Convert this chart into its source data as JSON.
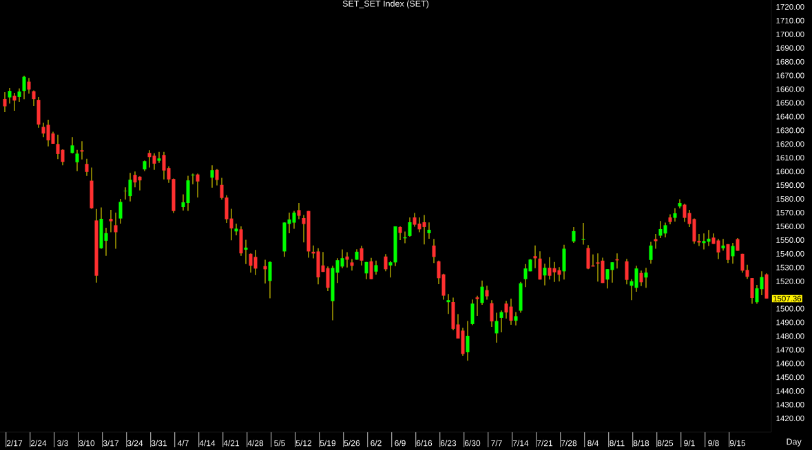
{
  "chart_data": {
    "type": "candlestick",
    "title": "SET_SET Index (SET)",
    "xlabel": "Day",
    "categories": [
      null,
      null,
      "2/17",
      null,
      null,
      null,
      null,
      "2/24",
      null,
      null,
      null,
      null,
      "3/3",
      null,
      null,
      null,
      null,
      "3/10",
      null,
      null,
      null,
      null,
      "3/17",
      null,
      null,
      null,
      null,
      "3/24",
      null,
      null,
      null,
      null,
      "3/31",
      null,
      null,
      null,
      null,
      "4/7",
      null,
      null,
      null,
      null,
      "4/14",
      null,
      null,
      null,
      null,
      "4/21",
      null,
      null,
      null,
      null,
      "4/28",
      null,
      null,
      null,
      null,
      "5/5",
      null,
      null,
      null,
      null,
      "5/12",
      null,
      null,
      null,
      null,
      "5/19",
      null,
      null,
      null,
      null,
      "5/26",
      null,
      null,
      null,
      null,
      "6/2",
      null,
      null,
      null,
      null,
      "6/9",
      null,
      null,
      null,
      null,
      "6/16",
      null,
      null,
      null,
      null,
      "6/23",
      null,
      null,
      null,
      null,
      "6/30",
      null,
      null,
      null,
      null,
      "7/7",
      null,
      null,
      null,
      null,
      "7/14",
      null,
      null,
      null,
      null,
      "7/21",
      null,
      null,
      null,
      null,
      "7/28",
      null,
      null,
      null,
      null,
      "8/4",
      null,
      null,
      null,
      null,
      "8/11",
      null,
      null,
      null,
      null,
      "8/18",
      null,
      null,
      null,
      null,
      "8/25",
      null,
      null,
      null,
      null,
      "9/1",
      null,
      null,
      null,
      null,
      "9/8",
      null,
      null,
      null,
      null,
      "9/15",
      null,
      null,
      null,
      null,
      null,
      null
    ],
    "ohlc": [
      [
        1652.8,
        1657.8,
        1643.3,
        1647.5
      ],
      [
        1654,
        1660.8,
        1649.5,
        1658.7
      ],
      [
        1655.2,
        1657.3,
        1644.2,
        1651.7
      ],
      [
        1654.3,
        1660.5,
        1650.7,
        1658.3
      ],
      [
        1658.7,
        1669.8,
        1652.7,
        1669
      ],
      [
        1665.5,
        1668.2,
        1656.8,
        1659.7
      ],
      [
        1658.5,
        1659,
        1647.7,
        1652.7
      ],
      [
        1652.2,
        1654.3,
        1631.8,
        1634.2
      ],
      [
        1632.5,
        1635.5,
        1625,
        1627.7
      ],
      [
        1634,
        1637.7,
        1618.3,
        1622.7
      ],
      [
        1627.7,
        1629,
        1620.2,
        1620.2
      ],
      [
        1620,
        1626.8,
        1609,
        1612.7
      ],
      [
        1615.8,
        1616.2,
        1604.5,
        1607
      ],
      null,
      [
        1613.5,
        1625,
        1613.2,
        1619
      ],
      [
        1606.7,
        1615.8,
        1600.2,
        1613
      ],
      [
        1615.5,
        1622,
        1608.7,
        1614.5
      ],
      [
        1605.5,
        1609.3,
        1596.7,
        1599.7
      ],
      [
        1593.3,
        1602.8,
        1572.8,
        1573.2
      ],
      [
        1564.3,
        1572.7,
        1519,
        1524
      ],
      [
        1544,
        1573.8,
        1543.7,
        1565.5
      ],
      [
        1549.5,
        1559,
        1538.5,
        1555
      ],
      [
        1565.5,
        1572,
        1555.7,
        1563.7
      ],
      [
        1560.8,
        1570,
        1543.7,
        1555.7
      ],
      [
        1565.7,
        1580,
        1562,
        1577.8
      ],
      [
        1585.5,
        1588.5,
        1579.5,
        1585.8
      ],
      [
        1582,
        1599,
        1578.2,
        1594
      ],
      [
        1597.5,
        1600,
        1588.5,
        1592
      ],
      [
        1596.2,
        1596.5,
        1586.2,
        1593.5
      ],
      [
        1601.5,
        1608,
        1600.2,
        1607.5
      ],
      [
        1613.5,
        1615.5,
        1602.8,
        1610.5
      ],
      [
        1611.5,
        1613.3,
        1601.2,
        1605.7
      ],
      [
        1607.8,
        1614.3,
        1606.2,
        1609.5
      ],
      [
        1612,
        1614.3,
        1594.2,
        1600.7
      ],
      [
        1602.5,
        1603.8,
        1591.7,
        1594.2
      ],
      [
        1594.5,
        1594.8,
        1569.7,
        1571.2
      ],
      null,
      [
        1574,
        1583.3,
        1571.5,
        1577.5
      ],
      [
        1577,
        1596.8,
        1571.3,
        1593.5
      ],
      [
        1597.2,
        1598.5,
        1590.7,
        1597.7
      ],
      [
        1597.8,
        1598.5,
        1581,
        1592.7
      ],
      null,
      null,
      [
        1595.5,
        1604.5,
        1588.2,
        1601
      ],
      [
        1601.2,
        1601.7,
        1589.8,
        1593.8
      ],
      [
        1590.2,
        1595.3,
        1579.5,
        1580.7
      ],
      [
        1581,
        1582.7,
        1562.5,
        1565.2
      ],
      [
        1565.7,
        1572.8,
        1549.8,
        1558.5
      ],
      [
        1556.3,
        1562,
        1553.5,
        1558.3
      ],
      [
        1557.8,
        1560,
        1538.5,
        1540.3
      ],
      [
        1543,
        1550.2,
        1532.5,
        1544.5
      ],
      [
        1540,
        1540.3,
        1526.2,
        1531.3
      ],
      [
        1537.7,
        1542.8,
        1524.5,
        1529.2
      ],
      null,
      [
        1531,
        1535.7,
        1518.3,
        1528.7
      ],
      [
        1520.2,
        1534.5,
        1507.5,
        1534
      ],
      null,
      null,
      [
        1541.7,
        1562.8,
        1537.8,
        1562.8
      ],
      [
        1561.8,
        1570,
        1555,
        1565
      ],
      [
        1562.7,
        1571.2,
        1558.2,
        1570
      ],
      [
        1571.8,
        1577,
        1565.2,
        1567.7
      ],
      [
        1566,
        1568.3,
        1548.3,
        1561.7
      ],
      [
        1571.2,
        1571.2,
        1537.2,
        1541.7
      ],
      [
        1541.5,
        1546,
        1536.7,
        1540.2
      ],
      [
        1541.7,
        1544,
        1517.7,
        1522.8
      ],
      [
        1531.5,
        1541.3,
        1526.8,
        1526.8
      ],
      [
        1529.5,
        1530.7,
        1512.8,
        1515.2
      ],
      [
        1505.5,
        1531.2,
        1491.5,
        1529.7
      ],
      [
        1526.2,
        1536.8,
        1518.7,
        1535.3
      ],
      [
        1530.7,
        1543.2,
        1529.5,
        1536.8
      ],
      [
        1538,
        1541.2,
        1530,
        1535.7
      ],
      [
        1533.7,
        1536.2,
        1527.8,
        1531.2
      ],
      [
        1535.7,
        1543.3,
        1535.7,
        1541.5
      ],
      [
        1544,
        1545.8,
        1531.5,
        1535
      ],
      [
        1525.7,
        1534,
        1521.5,
        1534
      ],
      [
        1534.5,
        1537,
        1521.5,
        1521.5
      ],
      [
        1527,
        1535,
        1524.8,
        1531.7
      ],
      null,
      [
        1538,
        1539.8,
        1527.2,
        1528.7
      ],
      [
        1531.5,
        1534.8,
        1522.7,
        1533.8
      ],
      [
        1533.7,
        1560,
        1531,
        1560
      ],
      [
        1559.5,
        1560,
        1550,
        1555.2
      ],
      [
        1551.3,
        1556.2,
        1547.7,
        1552
      ],
      [
        1553,
        1566.5,
        1552.5,
        1563
      ],
      [
        1566.5,
        1569.7,
        1559.7,
        1561.2
      ],
      [
        1562,
        1566.5,
        1555.7,
        1557.8
      ],
      [
        1563,
        1568.3,
        1546.8,
        1559.5
      ],
      [
        1555,
        1562.8,
        1551,
        1557.5
      ],
      [
        1546,
        1550.8,
        1533.3,
        1537.7
      ],
      [
        1534.5,
        1535,
        1517.8,
        1522.2
      ],
      [
        1525,
        1525.5,
        1506.5,
        1509.5
      ],
      [
        1504.7,
        1510.7,
        1496.2,
        1506.2
      ],
      [
        1504.8,
        1508,
        1484.2,
        1485.3
      ],
      [
        1488.5,
        1496,
        1478.2,
        1478.2
      ],
      [
        1484,
        1486,
        1465.7,
        1467
      ],
      [
        1468.2,
        1491,
        1462,
        1480.2
      ],
      [
        1488.8,
        1506.7,
        1488,
        1503.7
      ],
      [
        1508.2,
        1509.5,
        1494.8,
        1507
      ],
      [
        1504.2,
        1520.5,
        1502.8,
        1516
      ],
      [
        1513.5,
        1516.7,
        1506.5,
        1509
      ],
      [
        1504,
        1506.2,
        1486.8,
        1490.7
      ],
      [
        1482,
        1497,
        1475.2,
        1491
      ],
      [
        1493.3,
        1498.7,
        1482.7,
        1497.5
      ],
      [
        1503.7,
        1505.7,
        1492.8,
        1497.2
      ],
      [
        1501.5,
        1507.3,
        1488.2,
        1491.2
      ],
      [
        1491.2,
        1497.5,
        1487.8,
        1494.5
      ],
      [
        1498.5,
        1519.5,
        1497,
        1518.5
      ],
      [
        1521.5,
        1532.5,
        1515.7,
        1529.3
      ],
      [
        1527.2,
        1536.2,
        1527.2,
        1535.8
      ],
      [
        1538.3,
        1546,
        1529.5,
        1536.7
      ],
      [
        1536.5,
        1541.8,
        1521.2,
        1521.2
      ],
      [
        1524.2,
        1532.8,
        1517,
        1529.8
      ],
      [
        1529.8,
        1537.5,
        1521.2,
        1524
      ],
      [
        1529.5,
        1534,
        1519.5,
        1526.5
      ],
      [
        1528,
        1530.3,
        1519.8,
        1524.7
      ],
      [
        1527.2,
        1546.5,
        1521.2,
        1543.7
      ],
      null,
      [
        1549,
        1559.5,
        1548,
        1556.5
      ],
      null,
      [
        1550.2,
        1562.5,
        1546.7,
        1550.8
      ],
      [
        1544.2,
        1546.3,
        1528.7,
        1529.2
      ],
      [
        1531.5,
        1539.5,
        1530.7,
        1530.7
      ],
      [
        1533.7,
        1540.3,
        1519.7,
        1532.8
      ],
      [
        1535,
        1537.2,
        1518.7,
        1518.7
      ],
      [
        1521.2,
        1528.8,
        1514.7,
        1528.8
      ],
      [
        1528.2,
        1533.8,
        1519,
        1533.8
      ],
      [
        1536,
        1540.3,
        1529.2,
        1535.2
      ],
      null,
      [
        1534.5,
        1536.3,
        1517.7,
        1521
      ],
      [
        1516.7,
        1521.5,
        1506.2,
        1520
      ],
      [
        1515.2,
        1531.3,
        1512.3,
        1529.3
      ],
      [
        1526,
        1527.8,
        1516.5,
        1519.2
      ],
      [
        1522.7,
        1529.8,
        1515.2,
        1526.3
      ],
      [
        1535.5,
        1548.7,
        1532.8,
        1546
      ],
      [
        1550.7,
        1554.5,
        1543.7,
        1549.2
      ],
      [
        1553.2,
        1563.8,
        1551.5,
        1558
      ],
      [
        1554.8,
        1562.7,
        1552,
        1560.8
      ],
      [
        1566.5,
        1568.8,
        1561.5,
        1563.2
      ],
      [
        1566.2,
        1573.3,
        1563.5,
        1569.5
      ],
      [
        1574.5,
        1579.8,
        1573.2,
        1577
      ],
      [
        1575.8,
        1576.5,
        1563.2,
        1566.2
      ],
      [
        1569.7,
        1572,
        1559.5,
        1561.7
      ],
      [
        1565.3,
        1565.8,
        1547.3,
        1549
      ],
      [
        1549.5,
        1554.5,
        1545.7,
        1548.2
      ],
      [
        1547.8,
        1554.8,
        1543.2,
        1549.3
      ],
      [
        1548.8,
        1557.3,
        1545.7,
        1551
      ],
      [
        1551.8,
        1554.8,
        1547.2,
        1547.2
      ],
      [
        1549.7,
        1550.8,
        1536.2,
        1541
      ],
      [
        1544,
        1550.8,
        1542.3,
        1546
      ],
      [
        1547,
        1547,
        1533.3,
        1535.5
      ],
      [
        1538.2,
        1548,
        1532.8,
        1545.7
      ],
      [
        1550.7,
        1551.5,
        1542.2,
        1542.2
      ],
      [
        1540,
        1540,
        1526.2,
        1527.7
      ],
      [
        1528.2,
        1532,
        1521.7,
        1523.2
      ],
      [
        1522.3,
        1522.3,
        1503.5,
        1507.8
      ],
      [
        1504.7,
        1517.3,
        1503.5,
        1514.8
      ],
      [
        1514.2,
        1527.3,
        1509.8,
        1523
      ],
      [
        1525,
        1525.8,
        1507.36,
        1507.36
      ]
    ],
    "colors": [
      "#ff3030",
      "#00ff00",
      "#ff3030",
      "#00ff00",
      "#00ff00",
      "#ff3030",
      "#ff3030",
      "#ff3030",
      "#ff3030",
      "#ff3030",
      "#ff3030",
      "#ff3030",
      "#ff3030",
      null,
      "#00ff00",
      "#00ff00",
      "#ff3030",
      "#ff3030",
      "#ff3030",
      "#ff3030",
      "#00ff00",
      "#00ff00",
      "#ff3030",
      "#ff3030",
      "#00ff00",
      "#00ff00",
      "#00ff00",
      "#ff3030",
      "#ff3030",
      "#00ff00",
      "#ff3030",
      "#ff3030",
      "#00ff00",
      "#ff3030",
      "#ff3030",
      "#ff3030",
      null,
      "#00ff00",
      "#00ff00",
      "#00ff00",
      "#ff3030",
      null,
      null,
      "#00ff00",
      "#ff3030",
      "#ff3030",
      "#ff3030",
      "#ff3030",
      "#00ff00",
      "#ff3030",
      "#00ff00",
      "#ff3030",
      "#ff3030",
      null,
      "#ff3030",
      "#00ff00",
      null,
      null,
      "#00ff00",
      "#00ff00",
      "#00ff00",
      "#ff3030",
      "#ff3030",
      "#ff3030",
      "#ff3030",
      "#ff3030",
      "#ff3030",
      "#ff3030",
      "#00ff00",
      "#00ff00",
      "#00ff00",
      "#ff3030",
      "#ff3030",
      "#00ff00",
      "#ff3030",
      "#00ff00",
      "#ff3030",
      "#00ff00",
      null,
      "#ff3030",
      "#00ff00",
      "#00ff00",
      "#ff3030",
      "#00ff00",
      "#00ff00",
      "#ff3030",
      "#ff3030",
      "#ff3030",
      "#00ff00",
      "#ff3030",
      "#ff3030",
      "#ff3030",
      "#00ff00",
      "#ff3030",
      "#ff3030",
      "#ff3030",
      "#00ff00",
      "#00ff00",
      "#ff3030",
      "#00ff00",
      "#ff3030",
      "#ff3030",
      "#00ff00",
      "#00ff00",
      "#ff3030",
      "#ff3030",
      "#00ff00",
      "#00ff00",
      "#00ff00",
      "#00ff00",
      "#ff3030",
      "#ff3030",
      "#00ff00",
      "#ff3030",
      "#ff3030",
      "#ff3030",
      "#00ff00",
      null,
      "#00ff00",
      null,
      "#00ff00",
      "#ff3030",
      "#ff3030",
      "#ff3030",
      "#ff3030",
      "#00ff00",
      "#00ff00",
      "#ff3030",
      null,
      "#ff3030",
      "#00ff00",
      "#00ff00",
      "#ff3030",
      "#00ff00",
      "#00ff00",
      "#ff3030",
      "#00ff00",
      "#00ff00",
      "#ff3030",
      "#00ff00",
      "#00ff00",
      "#ff3030",
      "#ff3030",
      "#ff3030",
      "#ff3030",
      "#00ff00",
      "#00ff00",
      "#ff3030",
      "#ff3030",
      "#00ff00",
      "#ff3030",
      "#00ff00",
      "#ff3030",
      "#ff3030",
      "#ff3030",
      "#ff3030",
      "#00ff00",
      "#00ff00",
      "#ff3030"
    ],
    "ylim": [
      1410,
      1725
    ],
    "yticks": [
      {
        "value": 1420,
        "label": "1420.00"
      },
      {
        "value": 1430,
        "label": "1430.00"
      },
      {
        "value": 1440,
        "label": "1440.00"
      },
      {
        "value": 1450,
        "label": "1450.00"
      },
      {
        "value": 1460,
        "label": "1460.00"
      },
      {
        "value": 1470,
        "label": "1470.00"
      },
      {
        "value": 1480,
        "label": "1480.00"
      },
      {
        "value": 1490,
        "label": "1490.00"
      },
      {
        "value": 1500,
        "label": "1500.00"
      },
      {
        "value": 1520,
        "label": "1520.00"
      },
      {
        "value": 1530,
        "label": "1530.00"
      },
      {
        "value": 1540,
        "label": "1540.00"
      },
      {
        "value": 1550,
        "label": "1550.00"
      },
      {
        "value": 1560,
        "label": "1560.00"
      },
      {
        "value": 1570,
        "label": "1570.00"
      },
      {
        "value": 1580,
        "label": "1580.00"
      },
      {
        "value": 1590,
        "label": "1590.00"
      },
      {
        "value": 1600,
        "label": "1600.00"
      },
      {
        "value": 1610,
        "label": "1610.00"
      },
      {
        "value": 1620,
        "label": "1620.00"
      },
      {
        "value": 1630,
        "label": "1630.00"
      },
      {
        "value": 1640,
        "label": "1640.00"
      },
      {
        "value": 1650,
        "label": "1650.00"
      },
      {
        "value": 1660,
        "label": "1660.00"
      },
      {
        "value": 1670,
        "label": "1670.00"
      },
      {
        "value": 1680,
        "label": "1680.00"
      },
      {
        "value": 1690,
        "label": "1690.00"
      },
      {
        "value": 1700,
        "label": "1700.00"
      },
      {
        "value": 1710,
        "label": "1710.00"
      },
      {
        "value": 1720,
        "label": "1720.00"
      }
    ],
    "annotations": [
      "1507.36"
    ]
  }
}
